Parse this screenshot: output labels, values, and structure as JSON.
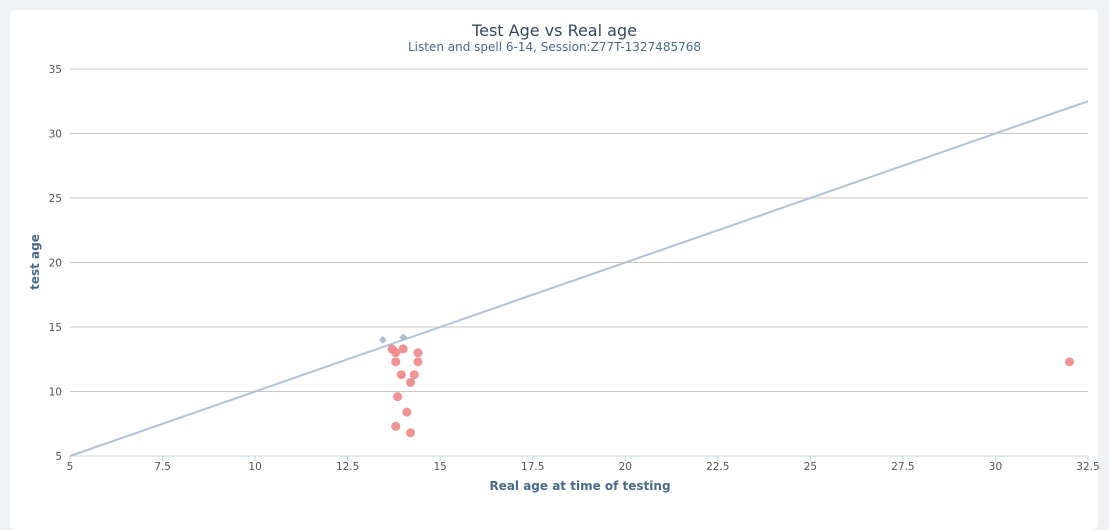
{
  "chart_data": {
    "type": "scatter",
    "title": "Test Age vs Real age",
    "subtitle": "Listen and spell 6-14, Session:Z77T-1327485768",
    "xlabel": "Real age at time of testing",
    "ylabel": "test age",
    "xlim": [
      5,
      32.5
    ],
    "ylim": [
      5,
      35
    ],
    "xticks": [
      "5",
      "7.5",
      "10",
      "12.5",
      "15",
      "17.5",
      "20",
      "22.5",
      "25",
      "27.5",
      "30",
      "32.5"
    ],
    "yticks": [
      "5",
      "10",
      "15",
      "20",
      "25",
      "30",
      "35"
    ],
    "grid": "horizontal",
    "series": [
      {
        "marker": "circle",
        "color": "#f08080",
        "points": [
          [
            13.7,
            13.3
          ],
          [
            13.8,
            13.0
          ],
          [
            13.8,
            12.3
          ],
          [
            14.0,
            13.3
          ],
          [
            14.4,
            13.0
          ],
          [
            14.4,
            12.3
          ],
          [
            13.95,
            11.3
          ],
          [
            14.3,
            11.3
          ],
          [
            14.2,
            10.7
          ],
          [
            13.85,
            9.6
          ],
          [
            14.1,
            8.4
          ],
          [
            13.8,
            7.3
          ],
          [
            14.2,
            6.8
          ],
          [
            32.0,
            12.3
          ]
        ]
      },
      {
        "marker": "diamond",
        "color": "#b0c0d4",
        "points": [
          [
            13.45,
            14.0
          ],
          [
            14.0,
            14.2
          ]
        ]
      }
    ],
    "reference_line": {
      "color": "#b0c4d8",
      "points": [
        [
          5,
          5
        ],
        [
          32.5,
          32.5
        ]
      ]
    }
  }
}
